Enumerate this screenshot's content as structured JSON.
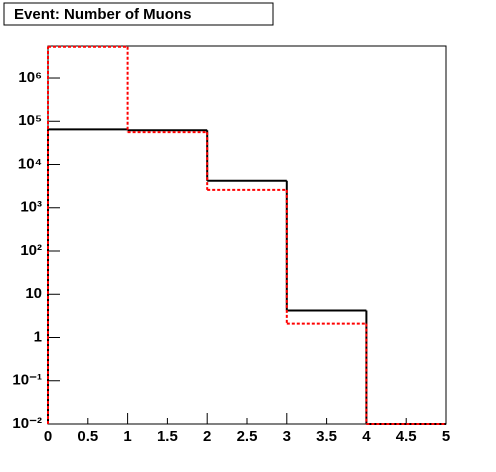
{
  "chart_data": {
    "type": "histogram",
    "title": "Event: Number of Muons",
    "bins": [
      0,
      1,
      2,
      3,
      4,
      5
    ],
    "series": [
      {
        "color": "#000000",
        "values": [
          65000,
          62000,
          4200,
          4.2,
          0
        ]
      },
      {
        "color": "#ff0000",
        "values": [
          5300000,
          56000,
          2600,
          2.1,
          0
        ]
      }
    ],
    "xlim": [
      0,
      5
    ],
    "xticks": [
      0,
      0.5,
      1,
      1.5,
      2,
      2.5,
      3,
      3.5,
      4,
      4.5,
      5
    ],
    "ylim": [
      0.01,
      5500000
    ],
    "log_y": true,
    "yticks": [
      {
        "value": 0.01,
        "label": "10⁻²"
      },
      {
        "value": 0.1,
        "label": "10⁻¹"
      },
      1,
      10,
      {
        "value": 100,
        "label": "10²"
      },
      {
        "value": 1000,
        "label": "10³"
      },
      {
        "value": 10000,
        "label": "10⁴"
      },
      {
        "value": 100000,
        "label": "10⁵"
      },
      {
        "value": 1000000,
        "label": "10⁶"
      }
    ]
  }
}
